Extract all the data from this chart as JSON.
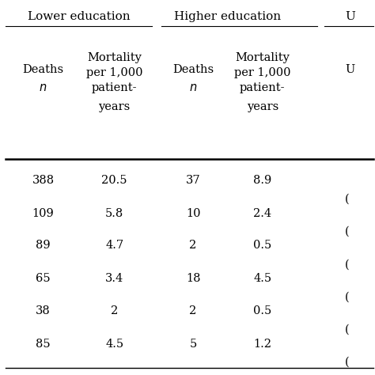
{
  "title_lower": "Lower education",
  "title_higher": "Higher education",
  "rows": [
    [
      "388",
      "20.5",
      "37",
      "8.9"
    ],
    [
      "109",
      "5.8",
      "10",
      "2.4"
    ],
    [
      "89",
      "4.7",
      "2",
      "0.5"
    ],
    [
      "65",
      "3.4",
      "18",
      "4.5"
    ],
    [
      "38",
      "2",
      "2",
      "0.5"
    ],
    [
      "85",
      "4.5",
      "5",
      "1.2"
    ]
  ],
  "paren_char": "(",
  "bg_color": "#ffffff",
  "text_color": "#000000",
  "font_size": 10.5
}
